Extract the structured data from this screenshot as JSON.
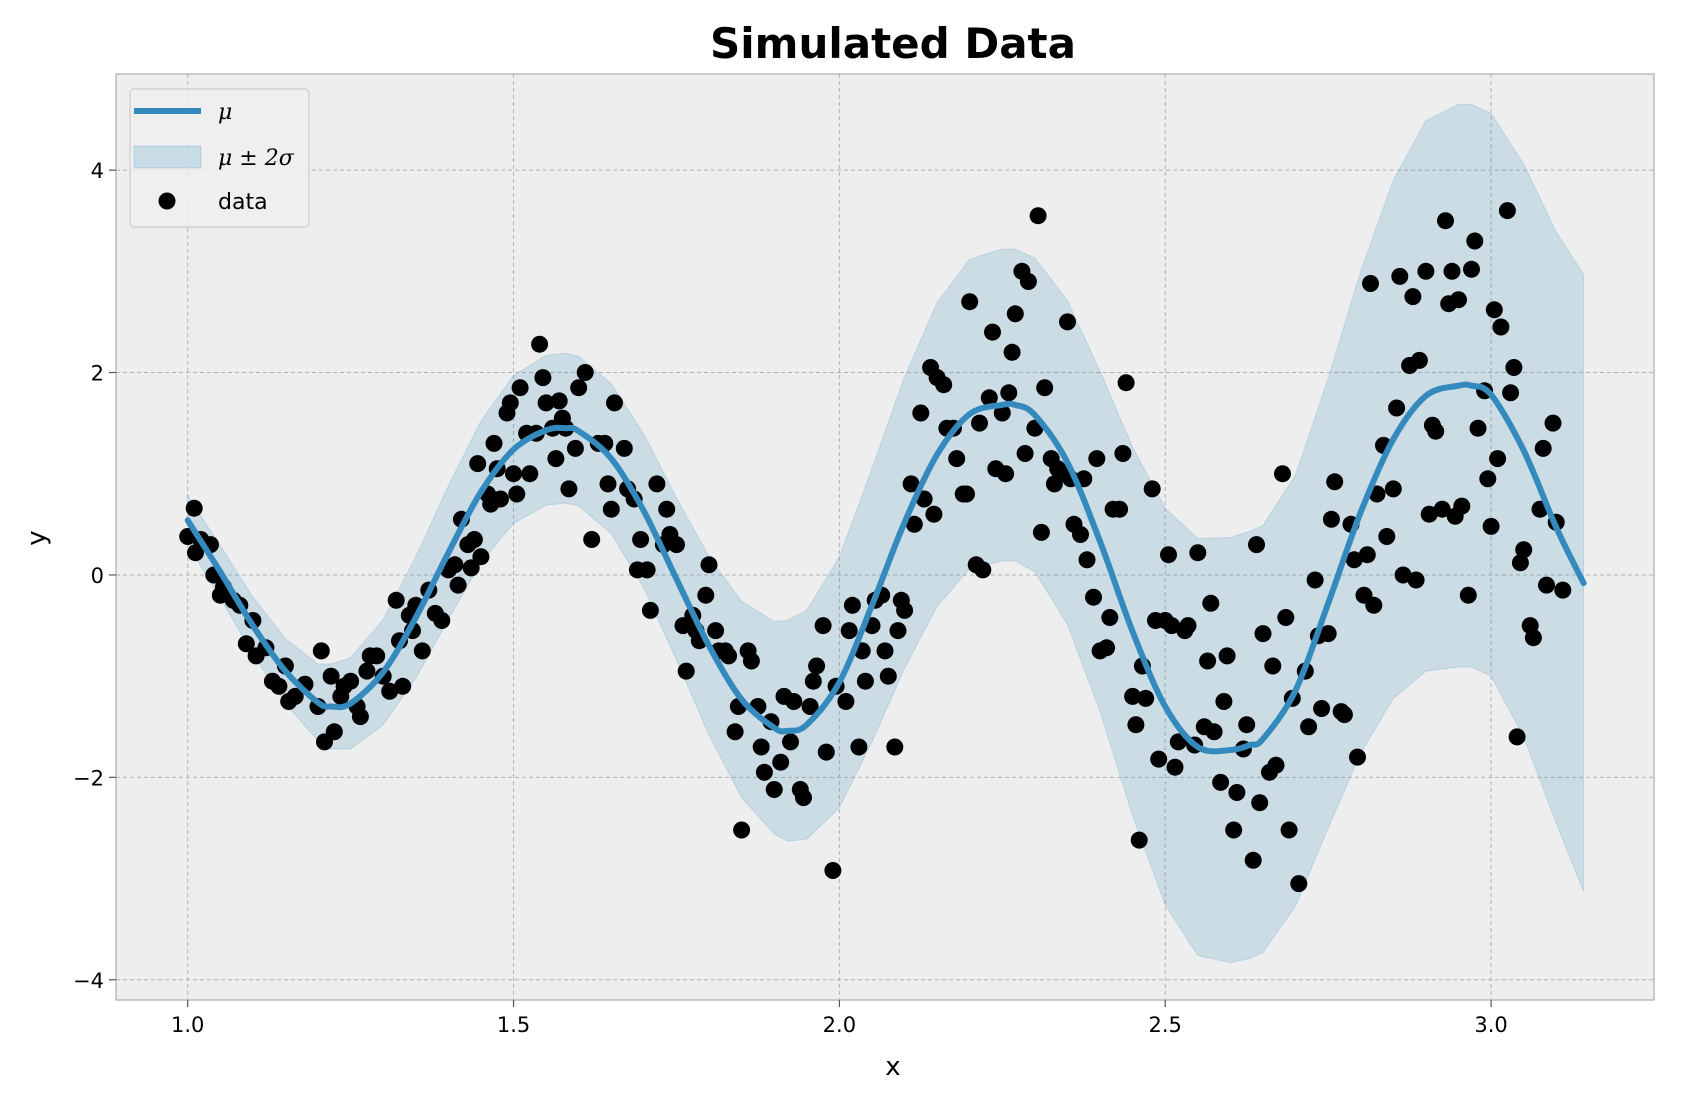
{
  "chart_data": {
    "type": "line",
    "title": "Simulated Data",
    "xlabel": "x",
    "ylabel": "y",
    "xlim": [
      0.89,
      3.25
    ],
    "ylim": [
      -4.2,
      4.95
    ],
    "grid": true,
    "legend_position": "top-left",
    "xticks": [
      1.0,
      1.5,
      2.0,
      2.5,
      3.0
    ],
    "xtick_labels": [
      "1.0",
      "1.5",
      "2.0",
      "2.5",
      "3.0"
    ],
    "yticks": [
      -4,
      -2,
      0,
      2,
      4
    ],
    "ytick_labels": [
      "−4",
      "−2",
      "0",
      "2",
      "4"
    ],
    "legend": [
      {
        "label": "μ",
        "kind": "line"
      },
      {
        "label": "μ ± 2σ",
        "kind": "band"
      },
      {
        "label": "data",
        "kind": "scatter"
      }
    ],
    "colors": {
      "mean": "#348abd",
      "band": "#348abd",
      "points": "#000000",
      "background": "#eeeeee"
    },
    "mean": {
      "name": "μ",
      "x": [
        1.0,
        1.05,
        1.1,
        1.15,
        1.2,
        1.22,
        1.25,
        1.3,
        1.35,
        1.4,
        1.45,
        1.5,
        1.55,
        1.58,
        1.6,
        1.65,
        1.7,
        1.75,
        1.8,
        1.85,
        1.9,
        1.92,
        1.95,
        2.0,
        2.05,
        2.1,
        2.15,
        2.2,
        2.25,
        2.27,
        2.3,
        2.35,
        2.4,
        2.45,
        2.5,
        2.55,
        2.6,
        2.63,
        2.65,
        2.7,
        2.75,
        2.8,
        2.85,
        2.9,
        2.95,
        2.97,
        3.0,
        3.05,
        3.1,
        3.142
      ],
      "y": [
        0.54,
        0.03,
        -0.5,
        -0.95,
        -1.26,
        -1.3,
        -1.27,
        -0.96,
        -0.42,
        0.22,
        0.82,
        1.24,
        1.43,
        1.45,
        1.42,
        1.15,
        0.63,
        -0.04,
        -0.7,
        -1.23,
        -1.51,
        -1.54,
        -1.48,
        -1.06,
        -0.3,
        0.52,
        1.19,
        1.59,
        1.68,
        1.68,
        1.58,
        1.11,
        0.33,
        -0.56,
        -1.3,
        -1.7,
        -1.73,
        -1.68,
        -1.62,
        -1.14,
        -0.28,
        0.62,
        1.34,
        1.77,
        1.87,
        1.87,
        1.78,
        1.23,
        0.47,
        -0.08
      ]
    },
    "band": {
      "name": "μ ± 2σ",
      "x": [
        1.0,
        1.05,
        1.1,
        1.15,
        1.2,
        1.22,
        1.25,
        1.3,
        1.35,
        1.4,
        1.45,
        1.5,
        1.55,
        1.58,
        1.6,
        1.65,
        1.7,
        1.75,
        1.8,
        1.85,
        1.9,
        1.92,
        1.95,
        2.0,
        2.05,
        2.1,
        2.15,
        2.2,
        2.25,
        2.27,
        2.3,
        2.35,
        2.4,
        2.45,
        2.5,
        2.55,
        2.6,
        2.63,
        2.65,
        2.7,
        2.75,
        2.8,
        2.85,
        2.9,
        2.95,
        2.97,
        3.0,
        3.05,
        3.1,
        3.142
      ],
      "sigma2": [
        0.24,
        0.26,
        0.28,
        0.32,
        0.38,
        0.42,
        0.45,
        0.52,
        0.6,
        0.66,
        0.7,
        0.73,
        0.74,
        0.74,
        0.74,
        0.74,
        0.76,
        0.8,
        0.88,
        0.97,
        1.05,
        1.09,
        1.13,
        1.24,
        1.35,
        1.44,
        1.5,
        1.53,
        1.54,
        1.54,
        1.55,
        1.6,
        1.68,
        1.82,
        1.96,
        2.06,
        2.1,
        2.11,
        2.11,
        2.13,
        2.22,
        2.38,
        2.56,
        2.72,
        2.78,
        2.78,
        2.78,
        2.83,
        2.92,
        3.05
      ]
    },
    "scatter": {
      "name": "data",
      "points": [
        [
          1.0,
          0.38
        ],
        [
          1.01,
          0.66
        ],
        [
          1.012,
          0.22
        ],
        [
          1.02,
          0.35
        ],
        [
          1.035,
          0.3
        ],
        [
          1.04,
          0.0
        ],
        [
          1.05,
          -0.2
        ],
        [
          1.055,
          -0.12
        ],
        [
          1.07,
          -0.25
        ],
        [
          1.08,
          -0.3
        ],
        [
          1.09,
          -0.68
        ],
        [
          1.1,
          -0.45
        ],
        [
          1.105,
          -0.8
        ],
        [
          1.12,
          -0.72
        ],
        [
          1.13,
          -1.05
        ],
        [
          1.14,
          -1.1
        ],
        [
          1.15,
          -0.9
        ],
        [
          1.155,
          -1.25
        ],
        [
          1.165,
          -1.2
        ],
        [
          1.18,
          -1.08
        ],
        [
          1.2,
          -1.3
        ],
        [
          1.205,
          -0.75
        ],
        [
          1.21,
          -1.65
        ],
        [
          1.22,
          -1.0
        ],
        [
          1.225,
          -1.55
        ],
        [
          1.235,
          -1.2
        ],
        [
          1.24,
          -1.1
        ],
        [
          1.25,
          -1.05
        ],
        [
          1.26,
          -1.3
        ],
        [
          1.265,
          -1.4
        ],
        [
          1.275,
          -0.95
        ],
        [
          1.28,
          -0.8
        ],
        [
          1.29,
          -0.8
        ],
        [
          1.3,
          -1.0
        ],
        [
          1.31,
          -1.15
        ],
        [
          1.32,
          -0.25
        ],
        [
          1.325,
          -0.65
        ],
        [
          1.33,
          -1.1
        ],
        [
          1.34,
          -0.4
        ],
        [
          1.345,
          -0.55
        ],
        [
          1.35,
          -0.3
        ],
        [
          1.36,
          -0.75
        ],
        [
          1.37,
          -0.15
        ],
        [
          1.38,
          -0.38
        ],
        [
          1.39,
          -0.45
        ],
        [
          1.4,
          0.05
        ],
        [
          1.41,
          0.1
        ],
        [
          1.415,
          -0.1
        ],
        [
          1.42,
          0.55
        ],
        [
          1.43,
          0.3
        ],
        [
          1.435,
          0.07
        ],
        [
          1.44,
          0.35
        ],
        [
          1.445,
          1.1
        ],
        [
          1.45,
          0.18
        ],
        [
          1.46,
          0.8
        ],
        [
          1.465,
          0.7
        ],
        [
          1.47,
          1.3
        ],
        [
          1.475,
          1.05
        ],
        [
          1.48,
          0.75
        ],
        [
          1.49,
          1.6
        ],
        [
          1.495,
          1.7
        ],
        [
          1.5,
          1.0
        ],
        [
          1.505,
          0.8
        ],
        [
          1.51,
          1.85
        ],
        [
          1.52,
          1.4
        ],
        [
          1.525,
          1.0
        ],
        [
          1.535,
          1.4
        ],
        [
          1.54,
          2.28
        ],
        [
          1.545,
          1.95
        ],
        [
          1.55,
          1.7
        ],
        [
          1.56,
          1.45
        ],
        [
          1.565,
          1.15
        ],
        [
          1.57,
          1.72
        ],
        [
          1.575,
          1.55
        ],
        [
          1.58,
          1.45
        ],
        [
          1.585,
          0.85
        ],
        [
          1.595,
          1.25
        ],
        [
          1.6,
          1.85
        ],
        [
          1.61,
          2.0
        ],
        [
          1.62,
          0.35
        ],
        [
          1.63,
          1.3
        ],
        [
          1.64,
          1.3
        ],
        [
          1.645,
          0.9
        ],
        [
          1.65,
          0.65
        ],
        [
          1.655,
          1.7
        ],
        [
          1.67,
          1.25
        ],
        [
          1.675,
          0.85
        ],
        [
          1.685,
          0.75
        ],
        [
          1.69,
          0.05
        ],
        [
          1.695,
          0.35
        ],
        [
          1.705,
          0.05
        ],
        [
          1.71,
          -0.35
        ],
        [
          1.72,
          0.9
        ],
        [
          1.73,
          0.3
        ],
        [
          1.735,
          0.65
        ],
        [
          1.74,
          0.4
        ],
        [
          1.75,
          0.3
        ],
        [
          1.76,
          -0.5
        ],
        [
          1.765,
          -0.95
        ],
        [
          1.775,
          -0.4
        ],
        [
          1.78,
          -0.55
        ],
        [
          1.785,
          -0.65
        ],
        [
          1.795,
          -0.2
        ],
        [
          1.8,
          0.1
        ],
        [
          1.81,
          -0.55
        ],
        [
          1.815,
          -0.75
        ],
        [
          1.825,
          -0.75
        ],
        [
          1.83,
          -0.8
        ],
        [
          1.84,
          -1.55
        ],
        [
          1.845,
          -1.3
        ],
        [
          1.85,
          -2.52
        ],
        [
          1.86,
          -0.75
        ],
        [
          1.865,
          -0.85
        ],
        [
          1.875,
          -1.3
        ],
        [
          1.88,
          -1.7
        ],
        [
          1.885,
          -1.95
        ],
        [
          1.895,
          -1.45
        ],
        [
          1.9,
          -2.12
        ],
        [
          1.91,
          -1.85
        ],
        [
          1.915,
          -1.2
        ],
        [
          1.925,
          -1.65
        ],
        [
          1.93,
          -1.25
        ],
        [
          1.94,
          -2.12
        ],
        [
          1.945,
          -2.2
        ],
        [
          1.955,
          -1.3
        ],
        [
          1.96,
          -1.05
        ],
        [
          1.965,
          -0.9
        ],
        [
          1.975,
          -0.5
        ],
        [
          1.98,
          -1.75
        ],
        [
          1.99,
          -2.92
        ],
        [
          1.995,
          -1.1
        ],
        [
          2.01,
          -1.25
        ],
        [
          2.015,
          -0.55
        ],
        [
          2.02,
          -0.3
        ],
        [
          2.03,
          -1.7
        ],
        [
          2.035,
          -0.75
        ],
        [
          2.04,
          -1.05
        ],
        [
          2.05,
          -0.5
        ],
        [
          2.055,
          -0.25
        ],
        [
          2.065,
          -0.2
        ],
        [
          2.07,
          -0.75
        ],
        [
          2.075,
          -1.0
        ],
        [
          2.085,
          -1.7
        ],
        [
          2.09,
          -0.55
        ],
        [
          2.095,
          -0.25
        ],
        [
          2.1,
          -0.35
        ],
        [
          2.11,
          0.9
        ],
        [
          2.115,
          0.5
        ],
        [
          2.125,
          1.6
        ],
        [
          2.13,
          0.75
        ],
        [
          2.14,
          2.05
        ],
        [
          2.145,
          0.6
        ],
        [
          2.15,
          1.95
        ],
        [
          2.16,
          1.88
        ],
        [
          2.165,
          1.45
        ],
        [
          2.175,
          1.45
        ],
        [
          2.18,
          1.15
        ],
        [
          2.19,
          0.8
        ],
        [
          2.195,
          0.8
        ],
        [
          2.2,
          2.7
        ],
        [
          2.21,
          0.1
        ],
        [
          2.215,
          1.5
        ],
        [
          2.22,
          0.05
        ],
        [
          2.23,
          1.75
        ],
        [
          2.235,
          2.4
        ],
        [
          2.24,
          1.05
        ],
        [
          2.25,
          1.6
        ],
        [
          2.255,
          1.0
        ],
        [
          2.26,
          1.8
        ],
        [
          2.265,
          2.2
        ],
        [
          2.27,
          2.58
        ],
        [
          2.28,
          3.0
        ],
        [
          2.285,
          1.2
        ],
        [
          2.29,
          2.9
        ],
        [
          2.3,
          1.45
        ],
        [
          2.305,
          3.55
        ],
        [
          2.31,
          0.42
        ],
        [
          2.315,
          1.85
        ],
        [
          2.325,
          1.15
        ],
        [
          2.33,
          0.9
        ],
        [
          2.335,
          1.05
        ],
        [
          2.34,
          1.0
        ],
        [
          2.35,
          2.5
        ],
        [
          2.355,
          0.95
        ],
        [
          2.36,
          0.5
        ],
        [
          2.37,
          0.4
        ],
        [
          2.375,
          0.95
        ],
        [
          2.38,
          0.15
        ],
        [
          2.39,
          -0.22
        ],
        [
          2.395,
          1.15
        ],
        [
          2.4,
          -0.75
        ],
        [
          2.41,
          -0.72
        ],
        [
          2.415,
          -0.42
        ],
        [
          2.42,
          0.65
        ],
        [
          2.43,
          0.65
        ],
        [
          2.435,
          1.2
        ],
        [
          2.44,
          1.9
        ],
        [
          2.45,
          -1.2
        ],
        [
          2.455,
          -1.48
        ],
        [
          2.46,
          -2.62
        ],
        [
          2.465,
          -0.9
        ],
        [
          2.47,
          -1.22
        ],
        [
          2.48,
          0.85
        ],
        [
          2.485,
          -0.45
        ],
        [
          2.49,
          -1.82
        ],
        [
          2.5,
          -0.45
        ],
        [
          2.505,
          0.2
        ],
        [
          2.51,
          -0.5
        ],
        [
          2.515,
          -1.9
        ],
        [
          2.52,
          -1.65
        ],
        [
          2.53,
          -0.55
        ],
        [
          2.535,
          -0.5
        ],
        [
          2.545,
          -1.68
        ],
        [
          2.55,
          0.22
        ],
        [
          2.56,
          -1.5
        ],
        [
          2.565,
          -0.85
        ],
        [
          2.57,
          -0.28
        ],
        [
          2.575,
          -1.55
        ],
        [
          2.585,
          -2.05
        ],
        [
          2.59,
          -1.25
        ],
        [
          2.595,
          -0.8
        ],
        [
          2.605,
          -2.52
        ],
        [
          2.61,
          -2.15
        ],
        [
          2.62,
          -1.72
        ],
        [
          2.625,
          -1.48
        ],
        [
          2.635,
          -2.82
        ],
        [
          2.64,
          0.3
        ],
        [
          2.645,
          -2.25
        ],
        [
          2.65,
          -0.58
        ],
        [
          2.66,
          -1.95
        ],
        [
          2.665,
          -0.9
        ],
        [
          2.67,
          -1.88
        ],
        [
          2.68,
          1.0
        ],
        [
          2.685,
          -0.42
        ],
        [
          2.69,
          -2.52
        ],
        [
          2.695,
          -1.22
        ],
        [
          2.705,
          -3.05
        ],
        [
          2.715,
          -0.95
        ],
        [
          2.72,
          -1.5
        ],
        [
          2.73,
          -0.05
        ],
        [
          2.735,
          -0.6
        ],
        [
          2.74,
          -1.32
        ],
        [
          2.75,
          -0.58
        ],
        [
          2.755,
          0.55
        ],
        [
          2.76,
          0.92
        ],
        [
          2.77,
          -1.35
        ],
        [
          2.775,
          -1.38
        ],
        [
          2.785,
          0.5
        ],
        [
          2.79,
          0.15
        ],
        [
          2.795,
          -1.8
        ],
        [
          2.805,
          -0.2
        ],
        [
          2.81,
          0.2
        ],
        [
          2.815,
          2.88
        ],
        [
          2.82,
          -0.3
        ],
        [
          2.825,
          0.8
        ],
        [
          2.835,
          1.28
        ],
        [
          2.84,
          0.38
        ],
        [
          2.85,
          0.85
        ],
        [
          2.855,
          1.65
        ],
        [
          2.86,
          2.95
        ],
        [
          2.865,
          0.0
        ],
        [
          2.875,
          2.07
        ],
        [
          2.88,
          2.75
        ],
        [
          2.885,
          -0.05
        ],
        [
          2.89,
          2.12
        ],
        [
          2.9,
          3.0
        ],
        [
          2.905,
          0.6
        ],
        [
          2.91,
          1.48
        ],
        [
          2.915,
          1.42
        ],
        [
          2.925,
          0.65
        ],
        [
          2.93,
          3.5
        ],
        [
          2.935,
          2.68
        ],
        [
          2.94,
          3.0
        ],
        [
          2.945,
          0.58
        ],
        [
          2.95,
          2.72
        ],
        [
          2.955,
          0.68
        ],
        [
          2.965,
          -0.2
        ],
        [
          2.97,
          3.02
        ],
        [
          2.975,
          3.3
        ],
        [
          2.98,
          1.45
        ],
        [
          2.99,
          1.82
        ],
        [
          2.995,
          0.95
        ],
        [
          3.0,
          0.48
        ],
        [
          3.005,
          2.62
        ],
        [
          3.01,
          1.15
        ],
        [
          3.015,
          2.45
        ],
        [
          3.025,
          3.6
        ],
        [
          3.03,
          1.8
        ],
        [
          3.035,
          2.05
        ],
        [
          3.04,
          -1.6
        ],
        [
          3.045,
          0.12
        ],
        [
          3.05,
          0.25
        ],
        [
          3.06,
          -0.5
        ],
        [
          3.065,
          -0.62
        ],
        [
          3.075,
          0.65
        ],
        [
          3.08,
          1.25
        ],
        [
          3.085,
          -0.1
        ],
        [
          3.095,
          1.5
        ],
        [
          3.1,
          0.52
        ],
        [
          3.11,
          -0.15
        ]
      ]
    }
  }
}
